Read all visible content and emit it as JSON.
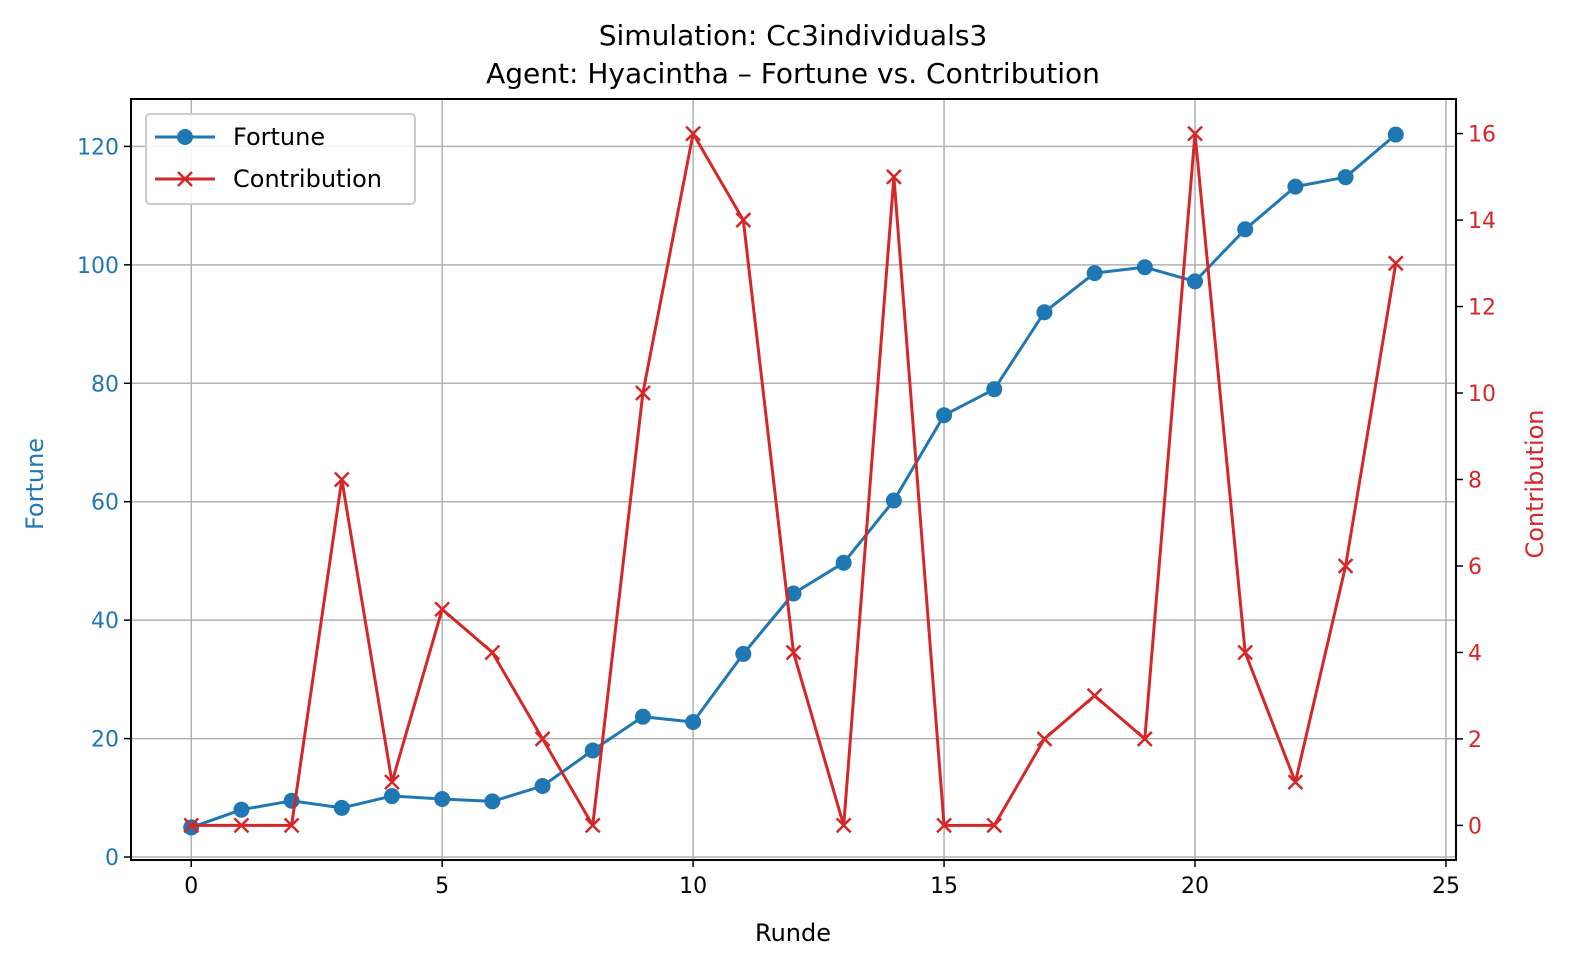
{
  "chart_data": {
    "type": "line",
    "title": "Simulation: Cc3individuals3",
    "subtitle": "Agent: Hyacintha – Fortune vs. Contribution",
    "xlabel": "Runde",
    "ylabel_left": "Fortune",
    "ylabel_right": "Contribution",
    "x": [
      0,
      1,
      2,
      3,
      4,
      5,
      6,
      7,
      8,
      9,
      10,
      11,
      12,
      13,
      14,
      15,
      16,
      17,
      18,
      19,
      20,
      21,
      22,
      23,
      24
    ],
    "xlim": [
      -1.2,
      25.2
    ],
    "xticks": [
      0,
      5,
      10,
      15,
      20,
      25
    ],
    "ylim_left": [
      -0.5,
      128
    ],
    "yticks_left": [
      0,
      20,
      40,
      60,
      80,
      100,
      120
    ],
    "ylim_right": [
      -0.8,
      16.8
    ],
    "yticks_right": [
      0,
      2,
      4,
      6,
      8,
      10,
      12,
      14,
      16
    ],
    "grid": true,
    "legend_position": "top-left",
    "series": [
      {
        "name": "Fortune",
        "axis": "left",
        "marker": "circle",
        "color": "#1f77b4",
        "values": [
          5,
          8,
          9.5,
          8.3,
          10.3,
          9.8,
          9.4,
          12,
          18,
          23.7,
          22.8,
          34.3,
          44.5,
          49.7,
          60.2,
          74.6,
          79,
          92,
          98.6,
          99.6,
          97.2,
          106,
          113.2,
          114.8,
          122
        ]
      },
      {
        "name": "Contribution",
        "axis": "right",
        "marker": "x",
        "color": "#d62728",
        "values": [
          0,
          0,
          0,
          8,
          1,
          5,
          4,
          2,
          0,
          10,
          16,
          14,
          4,
          0,
          15,
          0,
          0,
          2,
          3,
          2,
          16,
          4,
          1,
          6,
          13
        ]
      }
    ]
  }
}
